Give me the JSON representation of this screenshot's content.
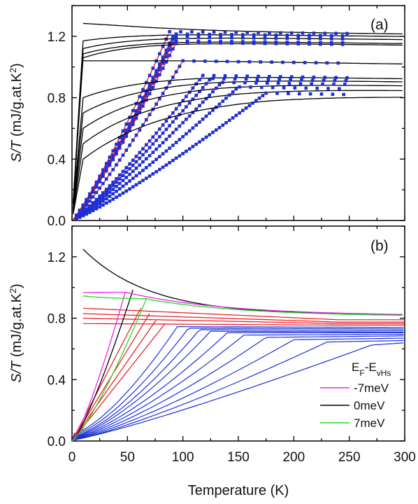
{
  "figure": {
    "x_axis_label": "Temperature (K)"
  },
  "chart_data": [
    {
      "type": "line",
      "panel_label": "(a)",
      "ylabel_var": "S/T",
      "ylabel_units": " (mJ/g.at.K",
      "ylabel_sup": "2",
      "ylabel_close": ")",
      "xlim": [
        0,
        300
      ],
      "ylim": [
        0,
        1.4
      ],
      "x_ticks": [
        0,
        50,
        100,
        150,
        200,
        250,
        300
      ],
      "y_ticks": [
        0.0,
        0.4,
        0.8,
        1.2
      ],
      "y_tick_labels": [
        "0.0",
        "0.4",
        "0.8",
        "1.2"
      ],
      "x_tick_labels_visible": false,
      "colors": {
        "normal_curve": "#000000",
        "fit_curve": "#e8141c",
        "data_points": "#1a2fd6"
      },
      "series": [
        {
          "Tc": 88,
          "S_sat": 1.23,
          "S0": 1.28
        },
        {
          "Tc": 92,
          "S_sat": 1.215,
          "S0": 1.17
        },
        {
          "Tc": 92,
          "S_sat": 1.195,
          "S0": 1.12
        },
        {
          "Tc": 92,
          "S_sat": 1.17,
          "S0": 1.085
        },
        {
          "Tc": 94,
          "S_sat": 1.16,
          "S0": 1.06
        },
        {
          "Tc": 100,
          "S_sat": 1.04,
          "S0": 1.04
        },
        {
          "Tc": 118,
          "S_sat": 0.945,
          "S0": 0.8
        },
        {
          "Tc": 125,
          "S_sat": 0.925,
          "S0": 0.7
        },
        {
          "Tc": 135,
          "S_sat": 0.9,
          "S0": 0.6
        },
        {
          "Tc": 150,
          "S_sat": 0.87,
          "S0": 0.5
        },
        {
          "Tc": 175,
          "S_sat": 0.83,
          "S0": 0.4
        }
      ]
    },
    {
      "type": "line",
      "panel_label": "(b)",
      "ylabel_var": "S/T",
      "ylabel_units": " (mJ/g.at.K",
      "ylabel_sup": "2",
      "ylabel_close": ")",
      "xlim": [
        0,
        300
      ],
      "ylim": [
        0,
        1.4
      ],
      "x_ticks": [
        0,
        50,
        100,
        150,
        200,
        250,
        300
      ],
      "x_tick_labels": [
        "0",
        "50",
        "100",
        "150",
        "200",
        "250",
        "300"
      ],
      "y_ticks": [
        0.0,
        0.4,
        0.8,
        1.2
      ],
      "y_tick_labels": [
        "0.0",
        "0.4",
        "0.8",
        "1.2"
      ],
      "legend": {
        "title_main": "E",
        "title_sub1": "F",
        "title_mid": "-E",
        "title_sub2": "vHs",
        "position": "lower-right",
        "entries": [
          {
            "label": "-7meV",
            "color": "#ee22ee"
          },
          {
            "label": "0meV",
            "color": "#000000"
          },
          {
            "label": "7meV",
            "color": "#22dd22"
          }
        ]
      },
      "colors": {
        "red_family": "#e8141c",
        "blue_family": "#1a2fd6"
      },
      "series": [
        {
          "name": "0meV",
          "color": "#000000",
          "Tc": 55,
          "top_start": 1.25,
          "at_Tc": 0.985,
          "end": 0.82
        },
        {
          "name": "-7meV",
          "color": "#ee22ee",
          "Tc": 48,
          "top_start": 0.965,
          "at_Tc": 0.97,
          "end": 0.815
        },
        {
          "name": "7meV",
          "color": "#22dd22",
          "Tc": 67,
          "top_start": 0.955,
          "at_Tc": 0.925,
          "end": 0.81
        }
      ],
      "red_series": [
        {
          "Tc": 62,
          "S_low": 0.865,
          "end": 0.79
        },
        {
          "Tc": 70,
          "S_low": 0.83,
          "end": 0.775
        },
        {
          "Tc": 77,
          "S_low": 0.8,
          "end": 0.765
        },
        {
          "Tc": 84,
          "S_low": 0.765,
          "end": 0.755
        }
      ],
      "blue_series": [
        {
          "Tc": 95,
          "S_sat": 0.745,
          "end": 0.74,
          "lowT": 0.06
        },
        {
          "Tc": 105,
          "S_sat": 0.735,
          "end": 0.73,
          "lowT": 0.05
        },
        {
          "Tc": 115,
          "S_sat": 0.725,
          "end": 0.72,
          "lowT": 0.04
        },
        {
          "Tc": 125,
          "S_sat": 0.715,
          "end": 0.71,
          "lowT": 0.035
        },
        {
          "Tc": 140,
          "S_sat": 0.705,
          "end": 0.705,
          "lowT": 0.03
        },
        {
          "Tc": 155,
          "S_sat": 0.69,
          "end": 0.695,
          "lowT": 0.025
        },
        {
          "Tc": 175,
          "S_sat": 0.675,
          "end": 0.685,
          "lowT": 0.02
        },
        {
          "Tc": 200,
          "S_sat": 0.66,
          "end": 0.67,
          "lowT": 0.015
        },
        {
          "Tc": 230,
          "S_sat": 0.645,
          "end": 0.655,
          "lowT": 0.01
        },
        {
          "Tc": 270,
          "S_sat": 0.625,
          "end": 0.64,
          "lowT": 0.008
        }
      ]
    }
  ]
}
